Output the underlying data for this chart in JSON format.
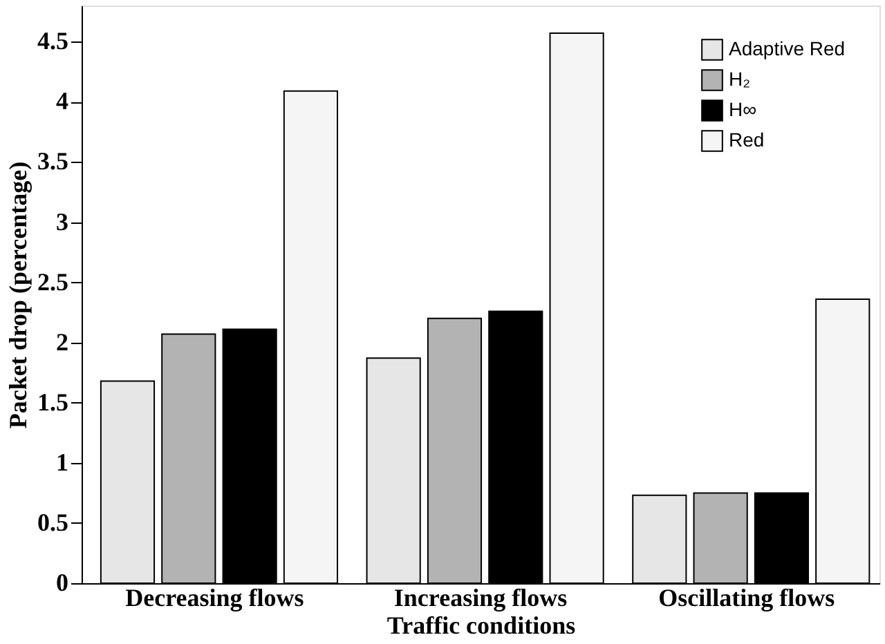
{
  "chart_data": {
    "type": "bar",
    "xlabel": "Traffic conditions",
    "ylabel": "Packet drop (percentage)",
    "categories": [
      "Decreasing flows",
      "Increasing flows",
      "Oscillating flows"
    ],
    "series": [
      {
        "name": "Adaptive Red",
        "color": "#e6e6e6",
        "values": [
          1.68,
          1.87,
          0.73
        ]
      },
      {
        "name": "H₂",
        "color": "#b3b3b3",
        "values": [
          2.07,
          2.2,
          0.75
        ]
      },
      {
        "name": "H∞",
        "color": "#000000",
        "values": [
          2.11,
          2.26,
          0.75
        ]
      },
      {
        "name": "Red",
        "color": "#f5f5f5",
        "values": [
          4.09,
          4.57,
          2.36
        ]
      }
    ],
    "ylim": [
      0,
      4.8
    ],
    "yticks": [
      0,
      0.5,
      1,
      1.5,
      2,
      2.5,
      3,
      3.5,
      4,
      4.5
    ],
    "grid": false,
    "legend": "top right"
  }
}
